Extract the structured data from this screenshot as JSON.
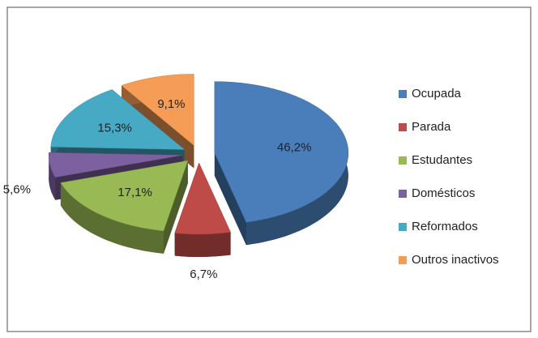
{
  "chart_data": {
    "type": "pie",
    "three_d": true,
    "exploded": true,
    "categories": [
      "Ocupada",
      "Parada",
      "Estudantes",
      "Domésticos",
      "Reformados",
      "Outros inactivos"
    ],
    "values": [
      46.2,
      6.7,
      17.1,
      5.6,
      15.3,
      9.1
    ],
    "value_labels": [
      "46,2%",
      "6,7%",
      "17,1%",
      "5,6%",
      "15,3%",
      "9,1%"
    ],
    "colors": [
      "#4a7ebb",
      "#be4b48",
      "#98b954",
      "#7d60a0",
      "#46aac5",
      "#f59d56"
    ],
    "legend": "right"
  }
}
